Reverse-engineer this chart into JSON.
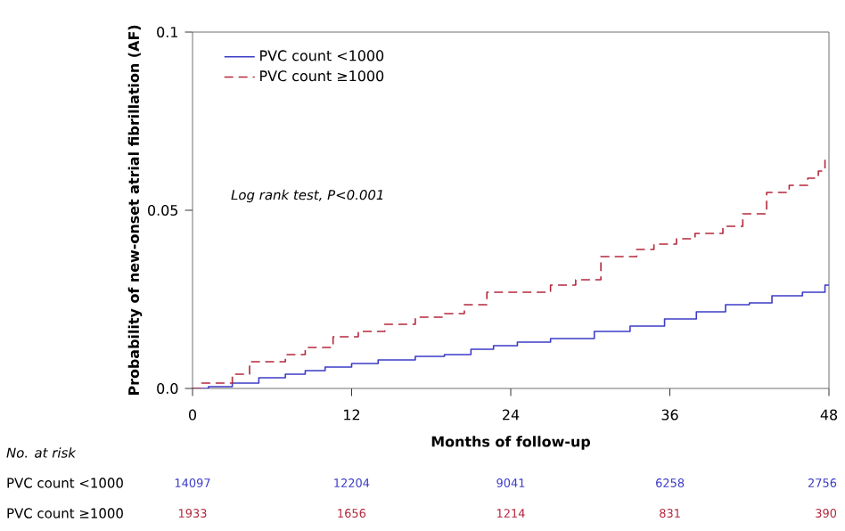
{
  "chart_data": {
    "type": "step",
    "xlabel": "Months of follow-up",
    "ylabel": "Probability of new-onset atrial fibrillation (AF)",
    "xlim": [
      0,
      48
    ],
    "ylim": [
      0,
      0.1
    ],
    "xticks": [
      0,
      12,
      24,
      36,
      48
    ],
    "yticks": [
      {
        "value": 0,
        "label": "0.0"
      },
      0.05,
      0.1
    ],
    "legend": "top left",
    "grid": false,
    "series": [
      {
        "name": "PVC count <1000",
        "color": "#3c3cc8",
        "line_style": "solid",
        "x": [
          0,
          1.2,
          3,
          5,
          7,
          8.5,
          10,
          12,
          14,
          16.8,
          19,
          21,
          22.7,
          24.5,
          27,
          30.3,
          33,
          35.6,
          38,
          40.2,
          42,
          43.7,
          46,
          47.7,
          48
        ],
        "values": [
          0,
          0.0005,
          0.0015,
          0.003,
          0.004,
          0.005,
          0.006,
          0.007,
          0.008,
          0.009,
          0.0095,
          0.011,
          0.012,
          0.013,
          0.014,
          0.016,
          0.0175,
          0.0195,
          0.0215,
          0.0235,
          0.024,
          0.026,
          0.027,
          0.029,
          0.029
        ]
      },
      {
        "name": "PVC count ≥1000",
        "color": "#b4283c",
        "line_style": "dashed",
        "x": [
          0,
          0.7,
          3,
          4.3,
          6,
          7,
          8.5,
          10.6,
          12.5,
          14.5,
          16.8,
          19,
          20.5,
          22.2,
          25.8,
          27,
          28.9,
          30.8,
          32.5,
          33.5,
          34.8,
          36.5,
          37.9,
          40,
          41.5,
          43.3,
          45,
          46.4,
          47.2,
          47.7,
          48
        ],
        "values": [
          0,
          0.0015,
          0.004,
          0.0075,
          0.0075,
          0.0095,
          0.0115,
          0.0145,
          0.016,
          0.018,
          0.02,
          0.021,
          0.0235,
          0.027,
          0.027,
          0.029,
          0.0305,
          0.037,
          0.037,
          0.039,
          0.0405,
          0.042,
          0.0435,
          0.0455,
          0.049,
          0.055,
          0.057,
          0.059,
          0.061,
          0.064,
          0.064
        ]
      }
    ],
    "annotations": [
      "Log rank test, P<0.001",
      "No. at risk",
      "14097",
      "12204",
      "9041",
      "6258",
      "2756",
      "1933",
      "1656",
      "1214",
      "831",
      "390"
    ]
  }
}
